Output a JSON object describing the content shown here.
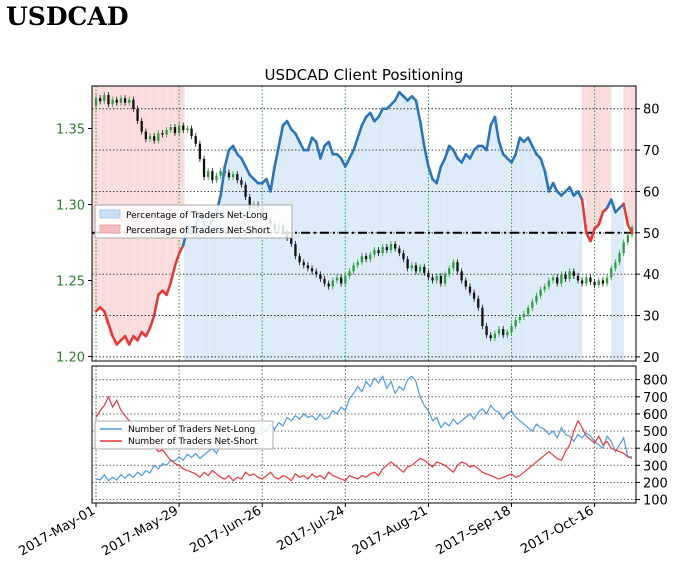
{
  "header": {
    "title": "USDCAD"
  },
  "colors": {
    "long": "#2E75B6",
    "long_light": "#4A9BE0",
    "short": "#E03A3A",
    "short_light": "#E8383D",
    "price_axis_text": "#2E7D32",
    "long_fill": "#DCEBF7",
    "short_fill": "#FBDCDC",
    "candle_up": "#2E9E3E",
    "candle_down": "#111111",
    "grid": "#2E9E3E"
  },
  "chart_data": [
    {
      "type": "line",
      "title": "USDCAD Client Positioning",
      "x_tick_labels": [
        "2017-May-01",
        "2017-May-29",
        "2017-Jun-26",
        "2017-Jul-24",
        "2017-Aug-21",
        "2017-Sep-18",
        "2017-Oct-16"
      ],
      "x_tick_index": [
        0,
        20,
        40,
        60,
        80,
        100,
        120
      ],
      "x_count": 130,
      "left_axis": {
        "ticks": [
          1.2,
          1.25,
          1.3,
          1.35
        ],
        "tick_labels": [
          "1.20",
          "1.25",
          "1.30",
          "1.35"
        ],
        "ylim": [
          1.197,
          1.378
        ]
      },
      "right_axis": {
        "ticks": [
          20,
          30,
          40,
          50,
          60,
          70,
          80
        ],
        "tick_labels": [
          "20",
          "30",
          "40",
          "50",
          "60",
          "70",
          "80"
        ],
        "ylim": [
          19,
          85.5
        ]
      },
      "reference_line": 50,
      "legend": {
        "position": "center-left",
        "entries": [
          "Percentage of Traders Net-Long",
          "Percentage of Traders Net-Short"
        ]
      },
      "series": [
        {
          "name": "Percentage of Traders Net-Long",
          "values": [
            31,
            32,
            31,
            28,
            25,
            23,
            24,
            25,
            23,
            25,
            24,
            26,
            25,
            27,
            30,
            35,
            36,
            35,
            38,
            42,
            45,
            47,
            51,
            50,
            52,
            55,
            52,
            51,
            53,
            55,
            59,
            66,
            70,
            71,
            69,
            68,
            66,
            64,
            63,
            62,
            62,
            63,
            60,
            66,
            71,
            76,
            77,
            75,
            74,
            72,
            70,
            70,
            73,
            72,
            68,
            71,
            72,
            69,
            69,
            68,
            66,
            68,
            70,
            73,
            76,
            78,
            79,
            77,
            78,
            80,
            80,
            81,
            82,
            84,
            83,
            82,
            83,
            82,
            77,
            71,
            66,
            63,
            62,
            66,
            68,
            71,
            70,
            68,
            67,
            69,
            68,
            70,
            71,
            71,
            70,
            76,
            78,
            72,
            69,
            68,
            67,
            69,
            73,
            72,
            73,
            71,
            69,
            68,
            65,
            60,
            62,
            60,
            59,
            60,
            61,
            59,
            60,
            58,
            50,
            48,
            51,
            52,
            55,
            56,
            58,
            55,
            56,
            57,
            52,
            50
          ],
          "short_segments": [
            [
              0,
              21
            ],
            [
              117,
              123
            ],
            [
              127,
              129
            ]
          ]
        },
        {
          "name": "USDCAD",
          "candles": [
            [
              1.365,
              1.37
            ],
            [
              1.37,
              1.368
            ],
            [
              1.368,
              1.372
            ],
            [
              1.372,
              1.366
            ],
            [
              1.366,
              1.369
            ],
            [
              1.369,
              1.367
            ],
            [
              1.367,
              1.37
            ],
            [
              1.37,
              1.367
            ],
            [
              1.367,
              1.369
            ],
            [
              1.369,
              1.363
            ],
            [
              1.363,
              1.355
            ],
            [
              1.355,
              1.348
            ],
            [
              1.348,
              1.343
            ],
            [
              1.343,
              1.345
            ],
            [
              1.345,
              1.342
            ],
            [
              1.342,
              1.347
            ],
            [
              1.347,
              1.346
            ],
            [
              1.346,
              1.349
            ],
            [
              1.349,
              1.351
            ],
            [
              1.351,
              1.347
            ],
            [
              1.347,
              1.352
            ],
            [
              1.352,
              1.349
            ],
            [
              1.349,
              1.35
            ],
            [
              1.35,
              1.345
            ],
            [
              1.345,
              1.34
            ],
            [
              1.34,
              1.33
            ],
            [
              1.33,
              1.318
            ],
            [
              1.318,
              1.322
            ],
            [
              1.322,
              1.316
            ],
            [
              1.316,
              1.319
            ],
            [
              1.319,
              1.322
            ],
            [
              1.322,
              1.321
            ],
            [
              1.321,
              1.318
            ],
            [
              1.318,
              1.32
            ],
            [
              1.32,
              1.316
            ],
            [
              1.316,
              1.313
            ],
            [
              1.313,
              1.305
            ],
            [
              1.305,
              1.297
            ],
            [
              1.297,
              1.3
            ],
            [
              1.3,
              1.298
            ],
            [
              1.298,
              1.293
            ],
            [
              1.293,
              1.29
            ],
            [
              1.29,
              1.287
            ],
            [
              1.287,
              1.283
            ],
            [
              1.283,
              1.286
            ],
            [
              1.286,
              1.282
            ],
            [
              1.282,
              1.278
            ],
            [
              1.278,
              1.274
            ],
            [
              1.274,
              1.266
            ],
            [
              1.266,
              1.262
            ],
            [
              1.262,
              1.26
            ],
            [
              1.26,
              1.258
            ],
            [
              1.258,
              1.256
            ],
            [
              1.256,
              1.254
            ],
            [
              1.254,
              1.251
            ],
            [
              1.251,
              1.248
            ],
            [
              1.248,
              1.246
            ],
            [
              1.246,
              1.25
            ],
            [
              1.25,
              1.252
            ],
            [
              1.252,
              1.248
            ],
            [
              1.248,
              1.253
            ],
            [
              1.253,
              1.256
            ],
            [
              1.256,
              1.26
            ],
            [
              1.26,
              1.262
            ],
            [
              1.262,
              1.266
            ],
            [
              1.266,
              1.264
            ],
            [
              1.264,
              1.267
            ],
            [
              1.267,
              1.27
            ],
            [
              1.27,
              1.268
            ],
            [
              1.268,
              1.272
            ],
            [
              1.272,
              1.27
            ],
            [
              1.27,
              1.274
            ],
            [
              1.274,
              1.271
            ],
            [
              1.271,
              1.268
            ],
            [
              1.268,
              1.264
            ],
            [
              1.264,
              1.258
            ],
            [
              1.258,
              1.26
            ],
            [
              1.26,
              1.256
            ],
            [
              1.256,
              1.259
            ],
            [
              1.259,
              1.255
            ],
            [
              1.255,
              1.252
            ],
            [
              1.252,
              1.25
            ],
            [
              1.25,
              1.253
            ],
            [
              1.253,
              1.248
            ],
            [
              1.248,
              1.254
            ],
            [
              1.254,
              1.258
            ],
            [
              1.258,
              1.262
            ],
            [
              1.262,
              1.256
            ],
            [
              1.256,
              1.25
            ],
            [
              1.25,
              1.246
            ],
            [
              1.246,
              1.242
            ],
            [
              1.242,
              1.238
            ],
            [
              1.238,
              1.232
            ],
            [
              1.232,
              1.22
            ],
            [
              1.22,
              1.214
            ],
            [
              1.214,
              1.212
            ],
            [
              1.212,
              1.215
            ],
            [
              1.215,
              1.218
            ],
            [
              1.218,
              1.214
            ],
            [
              1.214,
              1.216
            ],
            [
              1.216,
              1.22
            ],
            [
              1.22,
              1.224
            ],
            [
              1.224,
              1.226
            ],
            [
              1.226,
              1.228
            ],
            [
              1.228,
              1.232
            ],
            [
              1.232,
              1.236
            ],
            [
              1.236,
              1.24
            ],
            [
              1.24,
              1.244
            ],
            [
              1.244,
              1.246
            ],
            [
              1.246,
              1.25
            ],
            [
              1.25,
              1.252
            ],
            [
              1.252,
              1.248
            ],
            [
              1.248,
              1.254
            ],
            [
              1.254,
              1.251
            ],
            [
              1.251,
              1.256
            ],
            [
              1.256,
              1.253
            ],
            [
              1.253,
              1.25
            ],
            [
              1.25,
              1.248
            ],
            [
              1.248,
              1.252
            ],
            [
              1.252,
              1.249
            ],
            [
              1.249,
              1.247
            ],
            [
              1.247,
              1.25
            ],
            [
              1.25,
              1.248
            ],
            [
              1.248,
              1.252
            ],
            [
              1.252,
              1.258
            ],
            [
              1.258,
              1.262
            ],
            [
              1.262,
              1.268
            ],
            [
              1.268,
              1.275
            ],
            [
              1.275,
              1.28
            ],
            [
              1.28,
              1.285
            ]
          ]
        }
      ]
    },
    {
      "type": "line",
      "legend": {
        "position": "left",
        "entries": [
          "Number of Traders Net-Long",
          "Number of Traders Net-Short"
        ]
      },
      "right_axis": {
        "ticks": [
          100,
          200,
          300,
          400,
          500,
          600,
          700,
          800
        ],
        "tick_labels": [
          "100",
          "200",
          "300",
          "400",
          "500",
          "600",
          "700",
          "800"
        ],
        "ylim": [
          80,
          880
        ]
      },
      "series": [
        {
          "name": "Number of Traders Net-Long",
          "values": [
            220,
            215,
            245,
            210,
            230,
            215,
            245,
            225,
            250,
            230,
            260,
            240,
            270,
            255,
            300,
            280,
            310,
            300,
            330,
            325,
            350,
            330,
            365,
            345,
            370,
            340,
            360,
            380,
            400,
            370,
            420,
            440,
            460,
            430,
            470,
            450,
            490,
            460,
            510,
            480,
            520,
            500,
            540,
            510,
            550,
            530,
            580,
            560,
            590,
            570,
            600,
            580,
            590,
            565,
            600,
            570,
            580,
            620,
            600,
            640,
            620,
            690,
            720,
            760,
            730,
            790,
            760,
            810,
            780,
            820,
            750,
            790,
            720,
            760,
            740,
            800,
            820,
            790,
            700,
            650,
            620,
            560,
            580,
            520,
            550,
            530,
            570,
            540,
            560,
            580,
            600,
            570,
            610,
            630,
            600,
            650,
            620,
            610,
            570,
            600,
            620,
            580,
            560,
            540,
            520,
            500,
            540,
            520,
            510,
            480,
            500,
            460,
            520,
            480,
            470,
            440,
            480,
            460,
            490,
            470,
            440,
            420,
            400,
            470,
            440,
            380,
            420,
            460,
            350,
            350
          ],
          "x_shift": 0
        },
        {
          "name": "Number of Traders Net-Short",
          "values": [
            580,
            620,
            650,
            700,
            640,
            680,
            620,
            590,
            560,
            520,
            490,
            470,
            440,
            430,
            410,
            380,
            390,
            360,
            330,
            310,
            300,
            280,
            270,
            260,
            250,
            230,
            260,
            240,
            270,
            250,
            230,
            220,
            240,
            210,
            230,
            220,
            260,
            240,
            250,
            230,
            220,
            240,
            260,
            230,
            220,
            240,
            230,
            210,
            250,
            230,
            240,
            220,
            250,
            230,
            240,
            220,
            260,
            240,
            230,
            220,
            210,
            240,
            230,
            220,
            240,
            230,
            250,
            260,
            240,
            280,
            300,
            320,
            300,
            280,
            260,
            290,
            300,
            320,
            340,
            330,
            310,
            290,
            320,
            310,
            300,
            280,
            260,
            300,
            320,
            310,
            290,
            300,
            280,
            260,
            250,
            240,
            230,
            220,
            230,
            240,
            250,
            230,
            240,
            260,
            280,
            300,
            320,
            340,
            360,
            380,
            360,
            340,
            330,
            380,
            420,
            500,
            560,
            520,
            470,
            450,
            430,
            470,
            420,
            440,
            400,
            390,
            380,
            370,
            350,
            340
          ],
          "x_shift": 0
        }
      ],
      "bottom_legend_position": "left"
    }
  ]
}
